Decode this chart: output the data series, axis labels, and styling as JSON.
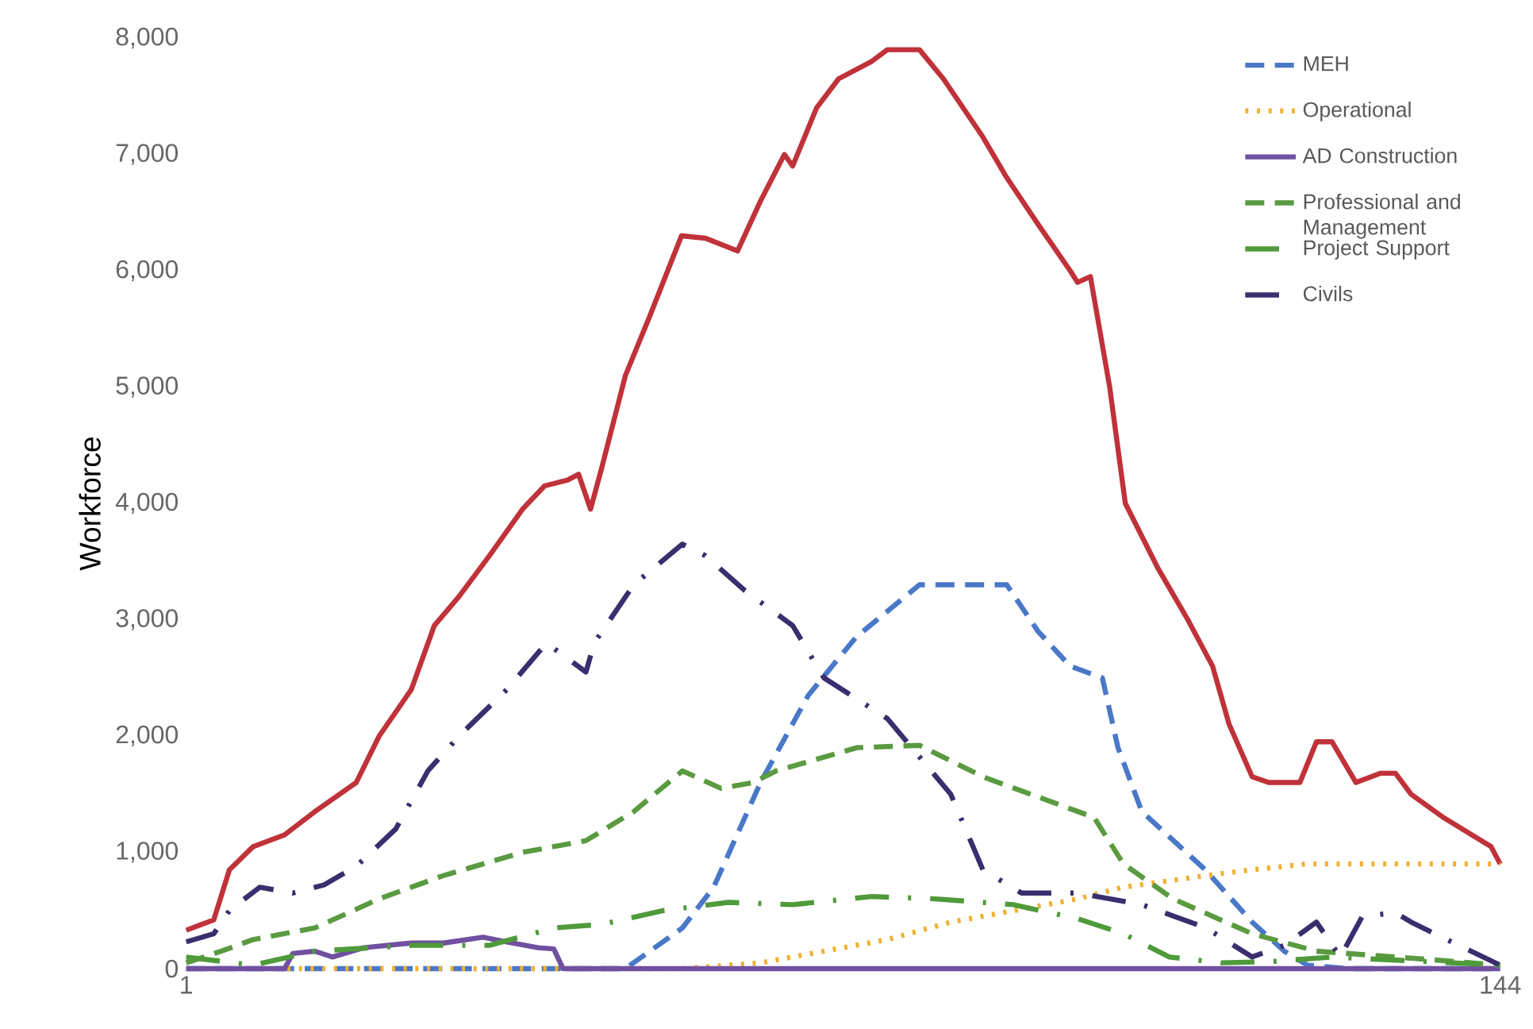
{
  "chart_data": {
    "type": "line",
    "ylabel": "Workforce",
    "xlim": [
      1,
      144
    ],
    "xticks": [
      1,
      144
    ],
    "ylim": [
      0,
      8000
    ],
    "yticks": [
      0,
      {
        "value": 1000,
        "label": "1,000"
      },
      {
        "value": 2000,
        "label": "2,000"
      },
      {
        "value": 3000,
        "label": "3,000"
      },
      {
        "value": 4000,
        "label": "4,000"
      },
      {
        "value": 5000,
        "label": "5,000"
      },
      {
        "value": 6000,
        "label": "6,000"
      },
      {
        "value": 7000,
        "label": "7,000"
      },
      {
        "value": 8000,
        "label": "8,000"
      }
    ],
    "grid": false,
    "legend": "top right",
    "series": [
      {
        "color": "#c0323a",
        "line_style": "solid",
        "x": [
          1,
          4,
          5.7,
          8.3,
          11.7,
          15,
          19.5,
          22,
          25.5,
          28,
          30.7,
          34,
          37.6,
          40,
          42.5,
          43.7,
          45,
          46.2,
          48.8,
          51.4,
          54.9,
          57.5,
          61,
          63.5,
          66.1,
          67,
          69.6,
          72,
          75.6,
          77.3,
          80.8,
          83.4,
          87.7,
          90.3,
          93.7,
          97.2,
          98,
          99.4,
          101.5,
          103.2,
          106.7,
          110,
          112.7,
          114.5,
          117,
          118.8,
          122.2,
          124,
          125.7,
          128.3,
          131,
          132.6,
          134.3,
          137.8,
          143,
          144
        ],
        "values": [
          330,
          420,
          850,
          1050,
          1150,
          1350,
          1600,
          2000,
          2400,
          2950,
          3200,
          3550,
          3950,
          4150,
          4200,
          4250,
          3950,
          4300,
          5100,
          5600,
          6300,
          6280,
          6170,
          6600,
          7000,
          6900,
          7400,
          7650,
          7800,
          7900,
          7900,
          7650,
          7150,
          6800,
          6400,
          6000,
          5900,
          5950,
          5000,
          4000,
          3450,
          3000,
          2600,
          2100,
          1650,
          1600,
          1600,
          1950,
          1950,
          1600,
          1680,
          1680,
          1500,
          1300,
          1050,
          900
        ]
      },
      {
        "name": "MEH",
        "color": "#4a78c8",
        "line_style": "dashed",
        "x": [
          1,
          48.8,
          55,
          58.4,
          63.5,
          68.7,
          73.9,
          80.8,
          90.3,
          93.7,
          97.2,
          100.7,
          102.4,
          105,
          111.9,
          117,
          120.5,
          123,
          127.4,
          144
        ],
        "values": [
          0,
          0,
          350,
          700,
          1600,
          2350,
          2850,
          3300,
          3300,
          2900,
          2600,
          2500,
          1900,
          1350,
          850,
          400,
          150,
          30,
          0,
          0
        ]
      },
      {
        "name": "Operational",
        "color": "#f0b030",
        "line_style": "dotted",
        "x": [
          12,
          55,
          63.5,
          70.4,
          77.3,
          84.2,
          91.2,
          98,
          103,
          112,
          117,
          123,
          144
        ],
        "values": [
          0,
          0,
          50,
          150,
          250,
          400,
          500,
          600,
          700,
          800,
          850,
          900,
          900
        ]
      },
      {
        "name": "AD Construction",
        "color": "#7050a0",
        "line_style": "solid",
        "x": [
          1,
          11.7,
          12.6,
          15,
          16.9,
          20.3,
          25.5,
          29,
          33.3,
          35.9,
          39.3,
          41,
          42,
          144
        ],
        "values": [
          0,
          0,
          130,
          150,
          100,
          180,
          220,
          220,
          270,
          230,
          180,
          170,
          0,
          0
        ]
      },
      {
        "name": "Professional and Management",
        "color": "#5a9a40",
        "line_style": "dashed",
        "x": [
          1,
          4.8,
          8.3,
          15,
          22,
          29,
          37.6,
          44.5,
          49.7,
          55,
          59.2,
          62.7,
          65.2,
          74,
          80.8,
          87.7,
          94.6,
          99.8,
          103,
          108.4,
          117,
          124,
          136,
          144
        ],
        "values": [
          50,
          150,
          250,
          350,
          600,
          800,
          1000,
          1100,
          1350,
          1700,
          1550,
          1600,
          1700,
          1900,
          1920,
          1650,
          1450,
          1300,
          900,
          600,
          300,
          150,
          80,
          30
        ]
      },
      {
        "name": "Project Support",
        "color": "#4f9a3a",
        "line_style": "dashdot",
        "x": [
          1,
          8.3,
          15,
          25.5,
          34,
          41,
          46.2,
          53,
          60,
          67,
          75.6,
          82.5,
          91,
          98,
          103,
          108,
          113.6,
          119,
          125.7,
          136,
          144
        ],
        "values": [
          100,
          30,
          150,
          200,
          200,
          350,
          380,
          500,
          570,
          550,
          620,
          600,
          550,
          430,
          300,
          100,
          50,
          60,
          100,
          60,
          30
        ]
      },
      {
        "name": "Civils",
        "color": "#3a2e6e",
        "line_style": "dashdot",
        "x": [
          1,
          4,
          5.7,
          9,
          12.6,
          16,
          19.5,
          23.8,
          27.3,
          30.7,
          35.9,
          40.2,
          44.5,
          45.4,
          49.7,
          55,
          57.5,
          61.8,
          67,
          70.4,
          77.3,
          84.2,
          87.7,
          91.9,
          98,
          105,
          112,
          117,
          120.5,
          124,
          126.6,
          129,
          132.6,
          134.3,
          139.5,
          144
        ],
        "values": [
          230,
          300,
          500,
          700,
          650,
          720,
          880,
          1200,
          1700,
          2000,
          2400,
          2800,
          2550,
          2800,
          3300,
          3650,
          3550,
          3250,
          2950,
          2500,
          2150,
          1500,
          850,
          650,
          650,
          550,
          350,
          100,
          200,
          400,
          100,
          450,
          480,
          400,
          200,
          30
        ]
      }
    ]
  }
}
